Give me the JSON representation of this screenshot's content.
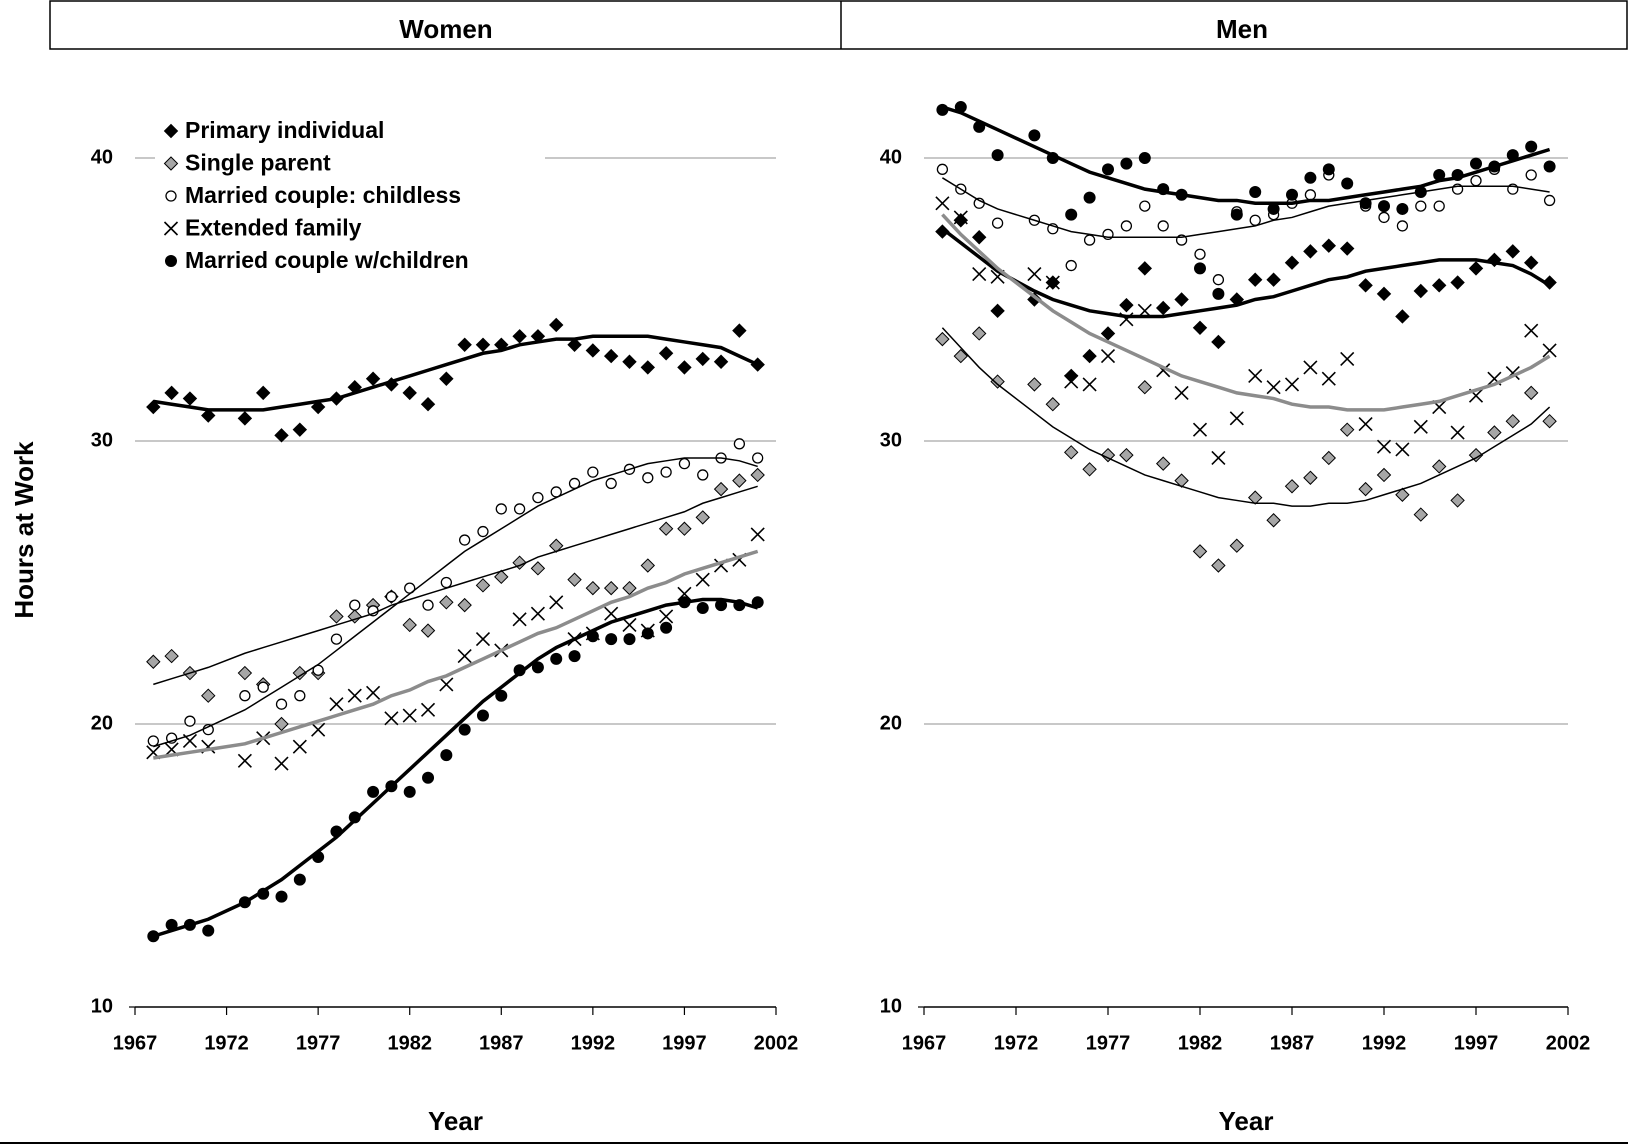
{
  "chart_data": [
    {
      "type": "scatter",
      "title": "Women",
      "ylabel": "Hours at Work",
      "xlabel": "Year",
      "x": [
        1968,
        1969,
        1970,
        1971,
        1973,
        1974,
        1975,
        1976,
        1977,
        1978,
        1979,
        1980,
        1981,
        1982,
        1983,
        1984,
        1985,
        1986,
        1987,
        1988,
        1989,
        1990,
        1991,
        1992,
        1993,
        1994,
        1995,
        1996,
        1997,
        1998,
        1999,
        2000,
        2001
      ],
      "xlim": [
        1967,
        2002
      ],
      "xticks": [
        1967,
        1972,
        1977,
        1982,
        1987,
        1992,
        1997,
        2002
      ],
      "ylim": [
        10,
        40
      ],
      "yticks": [
        10,
        20,
        30,
        40
      ],
      "grid": true,
      "legend": "upper left",
      "series": [
        {
          "name": "Primary individual",
          "marker": "diamond",
          "color": "#000000",
          "line_color": "#000000",
          "line_width": 3.5,
          "values": [
            31.2,
            31.7,
            31.5,
            30.9,
            30.8,
            31.7,
            30.2,
            30.4,
            31.2,
            31.5,
            31.9,
            32.2,
            32.0,
            31.7,
            31.3,
            32.2,
            33.4,
            33.4,
            33.4,
            33.7,
            33.7,
            34.1,
            33.4,
            33.2,
            33.0,
            32.8,
            32.6,
            33.1,
            32.6,
            32.9,
            32.8,
            33.9,
            32.7
          ],
          "trend": [
            31.4,
            31.3,
            31.2,
            31.1,
            31.1,
            31.1,
            31.2,
            31.3,
            31.4,
            31.5,
            31.7,
            31.9,
            32.1,
            32.3,
            32.5,
            32.7,
            32.9,
            33.1,
            33.2,
            33.4,
            33.5,
            33.6,
            33.6,
            33.7,
            33.7,
            33.7,
            33.7,
            33.6,
            33.5,
            33.4,
            33.3,
            33.0,
            32.7
          ]
        },
        {
          "name": "Single parent",
          "marker": "diamond",
          "color": "#a6a6a6",
          "line_color": "#000000",
          "line_width": 1.5,
          "values": [
            22.2,
            22.4,
            21.8,
            21.0,
            21.8,
            21.4,
            20.0,
            21.8,
            21.8,
            23.8,
            23.8,
            24.2,
            24.5,
            23.5,
            23.3,
            24.3,
            24.2,
            24.9,
            25.2,
            25.7,
            25.5,
            26.3,
            25.1,
            24.8,
            24.8,
            24.8,
            25.6,
            26.9,
            26.9,
            27.3,
            28.3,
            28.6,
            28.8
          ],
          "trend": [
            21.4,
            21.6,
            21.8,
            22.0,
            22.5,
            22.7,
            22.9,
            23.1,
            23.3,
            23.5,
            23.7,
            23.9,
            24.2,
            24.4,
            24.6,
            24.8,
            25.0,
            25.2,
            25.4,
            25.6,
            25.9,
            26.1,
            26.3,
            26.5,
            26.7,
            26.9,
            27.1,
            27.3,
            27.5,
            27.8,
            28.0,
            28.2,
            28.4
          ]
        },
        {
          "name": "Married couple: childless",
          "marker": "circle",
          "color": "#ffffff",
          "line_color": "#000000",
          "line_width": 1.5,
          "values": [
            19.4,
            19.5,
            20.1,
            19.8,
            21.0,
            21.3,
            20.7,
            21.0,
            21.9,
            23.0,
            24.2,
            24.0,
            24.5,
            24.8,
            24.2,
            25.0,
            26.5,
            26.8,
            27.6,
            27.6,
            28.0,
            28.2,
            28.5,
            28.9,
            28.5,
            29.0,
            28.7,
            28.9,
            29.2,
            28.8,
            29.4,
            29.9,
            29.4
          ],
          "trend": [
            19.2,
            19.4,
            19.6,
            19.9,
            20.5,
            20.9,
            21.3,
            21.7,
            22.1,
            22.6,
            23.1,
            23.6,
            24.1,
            24.6,
            25.1,
            25.6,
            26.1,
            26.5,
            26.9,
            27.3,
            27.7,
            28.0,
            28.3,
            28.6,
            28.8,
            29.0,
            29.2,
            29.3,
            29.4,
            29.4,
            29.4,
            29.3,
            29.1
          ]
        },
        {
          "name": "Extended family",
          "marker": "x",
          "color": "#000000",
          "line_color": "#8c8c8c",
          "line_width": 3.5,
          "values": [
            19.0,
            19.1,
            19.4,
            19.2,
            18.7,
            19.5,
            18.6,
            19.2,
            19.8,
            20.7,
            21.0,
            21.1,
            20.2,
            20.3,
            20.5,
            21.4,
            22.4,
            23.0,
            22.6,
            23.7,
            23.9,
            24.3,
            23.0,
            23.2,
            23.9,
            23.5,
            23.3,
            23.8,
            24.6,
            25.1,
            25.6,
            25.8,
            26.7
          ],
          "trend": [
            18.8,
            18.9,
            19.0,
            19.1,
            19.3,
            19.5,
            19.7,
            19.9,
            20.1,
            20.3,
            20.5,
            20.7,
            21.0,
            21.2,
            21.5,
            21.7,
            22.0,
            22.3,
            22.6,
            22.9,
            23.2,
            23.4,
            23.7,
            24.0,
            24.3,
            24.5,
            24.8,
            25.0,
            25.3,
            25.5,
            25.7,
            25.9,
            26.1
          ]
        },
        {
          "name": "Married couple w/children",
          "marker": "dot",
          "color": "#000000",
          "line_color": "#000000",
          "line_width": 3.5,
          "values": [
            12.5,
            12.9,
            12.9,
            12.7,
            13.7,
            14.0,
            13.9,
            14.5,
            15.3,
            16.2,
            16.7,
            17.6,
            17.8,
            17.6,
            18.1,
            18.9,
            19.8,
            20.3,
            21.0,
            21.9,
            22.0,
            22.3,
            22.4,
            23.1,
            23.0,
            23.0,
            23.2,
            23.4,
            24.3,
            24.1,
            24.2,
            24.2,
            24.3
          ],
          "trend": [
            12.5,
            12.7,
            12.9,
            13.1,
            13.7,
            14.1,
            14.5,
            15.0,
            15.5,
            16.0,
            16.6,
            17.2,
            17.8,
            18.4,
            19.0,
            19.6,
            20.2,
            20.8,
            21.3,
            21.8,
            22.3,
            22.7,
            23.0,
            23.3,
            23.6,
            23.8,
            24.0,
            24.2,
            24.3,
            24.4,
            24.4,
            24.3,
            24.1
          ]
        }
      ]
    },
    {
      "type": "scatter",
      "title": "Men",
      "xlabel": "Year",
      "x": [
        1968,
        1969,
        1970,
        1971,
        1973,
        1974,
        1975,
        1976,
        1977,
        1978,
        1979,
        1980,
        1981,
        1982,
        1983,
        1984,
        1985,
        1986,
        1987,
        1988,
        1989,
        1990,
        1991,
        1992,
        1993,
        1994,
        1995,
        1996,
        1997,
        1998,
        1999,
        2000,
        2001
      ],
      "xlim": [
        1967,
        2002
      ],
      "xticks": [
        1967,
        1972,
        1977,
        1982,
        1987,
        1992,
        1997,
        2002
      ],
      "ylim": [
        10,
        40
      ],
      "yticks": [
        10,
        20,
        30,
        40
      ],
      "grid": true,
      "series": [
        {
          "marker": "diamond",
          "color": "#000000",
          "line_color": "#000000",
          "line_width": 3.5,
          "values": [
            37.4,
            37.8,
            37.2,
            34.6,
            35.0,
            35.6,
            32.3,
            33.0,
            33.8,
            34.8,
            36.1,
            34.7,
            35.0,
            34.0,
            33.5,
            35.0,
            35.7,
            35.7,
            36.3,
            36.7,
            36.9,
            36.8,
            35.5,
            35.2,
            34.4,
            35.3,
            35.5,
            35.6,
            36.1,
            36.4,
            36.7,
            36.3,
            35.6
          ],
          "trend": [
            37.5,
            37.0,
            36.5,
            36.0,
            35.3,
            35.0,
            34.8,
            34.6,
            34.5,
            34.4,
            34.4,
            34.4,
            34.5,
            34.6,
            34.7,
            34.8,
            35.0,
            35.1,
            35.3,
            35.5,
            35.7,
            35.8,
            36.0,
            36.1,
            36.2,
            36.3,
            36.4,
            36.4,
            36.4,
            36.3,
            36.2,
            35.9,
            35.5
          ]
        },
        {
          "marker": "diamond",
          "color": "#a6a6a6",
          "line_color": "#000000",
          "line_width": 1.5,
          "values": [
            33.6,
            33.0,
            33.8,
            32.1,
            32.0,
            31.3,
            29.6,
            29.0,
            29.5,
            29.5,
            31.9,
            29.2,
            28.6,
            26.1,
            25.6,
            26.3,
            28.0,
            27.2,
            28.4,
            28.7,
            29.4,
            30.4,
            28.3,
            28.8,
            28.1,
            27.4,
            29.1,
            27.9,
            29.5,
            30.3,
            30.7,
            31.7,
            30.7
          ],
          "trend": [
            34.0,
            33.3,
            32.6,
            32.0,
            31.0,
            30.5,
            30.1,
            29.7,
            29.4,
            29.1,
            28.8,
            28.6,
            28.4,
            28.2,
            28.0,
            27.9,
            27.8,
            27.8,
            27.7,
            27.7,
            27.8,
            27.8,
            27.9,
            28.1,
            28.3,
            28.5,
            28.8,
            29.1,
            29.4,
            29.8,
            30.2,
            30.6,
            31.2
          ]
        },
        {
          "marker": "circle",
          "color": "#ffffff",
          "line_color": "#000000",
          "line_width": 1.5,
          "values": [
            39.6,
            38.9,
            38.4,
            37.7,
            37.8,
            37.5,
            36.2,
            37.1,
            37.3,
            37.6,
            38.3,
            37.6,
            37.1,
            36.6,
            35.7,
            38.1,
            37.8,
            38.0,
            38.4,
            38.7,
            39.4,
            39.1,
            38.3,
            37.9,
            37.6,
            38.3,
            38.3,
            38.9,
            39.2,
            39.6,
            38.9,
            39.4,
            38.5
          ],
          "trend": [
            39.3,
            38.9,
            38.5,
            38.2,
            37.8,
            37.6,
            37.4,
            37.3,
            37.2,
            37.2,
            37.2,
            37.2,
            37.2,
            37.3,
            37.4,
            37.5,
            37.6,
            37.8,
            37.9,
            38.1,
            38.3,
            38.4,
            38.5,
            38.6,
            38.7,
            38.8,
            38.9,
            39.0,
            39.0,
            39.0,
            39.0,
            38.9,
            38.8
          ]
        },
        {
          "marker": "x",
          "color": "#000000",
          "line_color": "#8c8c8c",
          "line_width": 3.5,
          "values": [
            38.4,
            37.9,
            35.9,
            35.8,
            35.9,
            35.6,
            32.1,
            32.0,
            33.0,
            34.3,
            34.6,
            32.5,
            31.7,
            30.4,
            29.4,
            30.8,
            32.3,
            31.9,
            32.0,
            32.6,
            32.2,
            32.9,
            30.6,
            29.8,
            29.7,
            30.5,
            31.2,
            30.3,
            31.6,
            32.2,
            32.4,
            33.9,
            33.2
          ],
          "trend": [
            38.0,
            37.3,
            36.7,
            36.1,
            35.1,
            34.6,
            34.2,
            33.8,
            33.5,
            33.2,
            32.9,
            32.6,
            32.3,
            32.1,
            31.9,
            31.7,
            31.6,
            31.5,
            31.3,
            31.2,
            31.2,
            31.1,
            31.1,
            31.1,
            31.2,
            31.3,
            31.4,
            31.6,
            31.8,
            32.0,
            32.3,
            32.6,
            33.0
          ]
        },
        {
          "marker": "dot",
          "color": "#000000",
          "line_color": "#000000",
          "line_width": 3.5,
          "values": [
            41.7,
            41.8,
            41.1,
            40.1,
            40.8,
            40.0,
            38.0,
            38.6,
            39.6,
            39.8,
            40.0,
            38.9,
            38.7,
            36.1,
            35.2,
            38.0,
            38.8,
            38.2,
            38.7,
            39.3,
            39.6,
            39.1,
            38.4,
            38.3,
            38.2,
            38.8,
            39.4,
            39.4,
            39.8,
            39.7,
            40.1,
            40.4,
            39.7
          ],
          "trend": [
            41.8,
            41.6,
            41.3,
            41.0,
            40.4,
            40.1,
            39.8,
            39.5,
            39.3,
            39.1,
            38.9,
            38.8,
            38.7,
            38.6,
            38.5,
            38.5,
            38.4,
            38.4,
            38.4,
            38.5,
            38.5,
            38.6,
            38.7,
            38.8,
            38.9,
            39.0,
            39.2,
            39.3,
            39.5,
            39.7,
            39.9,
            40.1,
            40.3
          ]
        }
      ]
    }
  ]
}
